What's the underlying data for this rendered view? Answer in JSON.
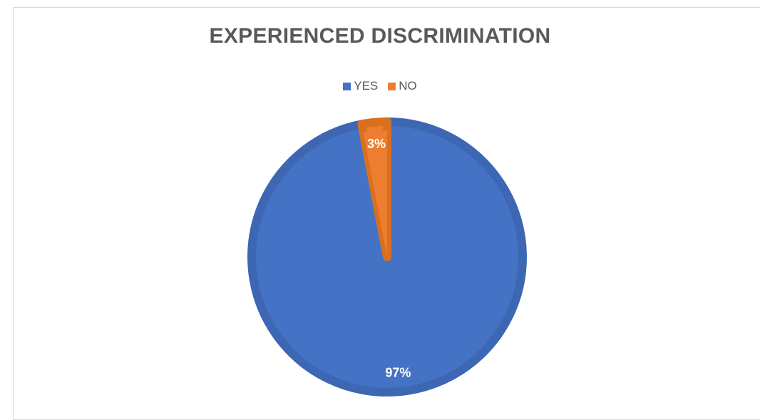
{
  "chart_data": {
    "type": "pie",
    "title": "EXPERIENCED DISCRIMINATION",
    "categories": [
      "YES",
      "NO"
    ],
    "values": [
      97,
      3
    ],
    "data_labels": [
      "97%",
      "3%"
    ],
    "colors": [
      "#4472C4",
      "#ED7D31"
    ],
    "legend_position": "top"
  }
}
